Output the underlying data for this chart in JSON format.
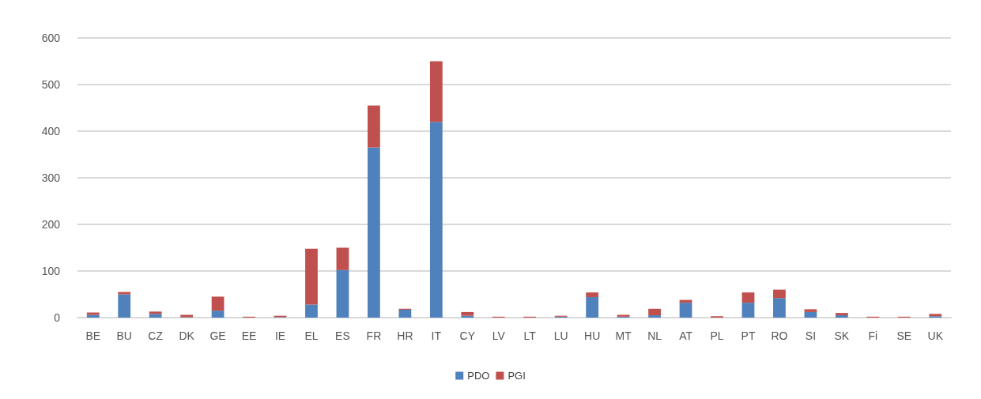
{
  "chart_data": {
    "type": "bar",
    "stacked": true,
    "categories": [
      "BE",
      "BU",
      "CZ",
      "DK",
      "GE",
      "EE",
      "IE",
      "EL",
      "ES",
      "FR",
      "HR",
      "IT",
      "CY",
      "LV",
      "LT",
      "LU",
      "HU",
      "MT",
      "NL",
      "AT",
      "PL",
      "PT",
      "RO",
      "SI",
      "SK",
      "Fi",
      "SE",
      "UK"
    ],
    "series": [
      {
        "name": "PDO",
        "color": "#4f81bd",
        "values": [
          6,
          50,
          8,
          1,
          15,
          0,
          1,
          28,
          102,
          365,
          17,
          420,
          4,
          0,
          0,
          2,
          44,
          2,
          5,
          32,
          0,
          32,
          42,
          12,
          5,
          0,
          0,
          3
        ]
      },
      {
        "name": "PGI",
        "color": "#c0504d",
        "values": [
          5,
          5,
          5,
          5,
          30,
          2,
          3,
          120,
          48,
          90,
          2,
          130,
          8,
          2,
          2,
          2,
          10,
          4,
          14,
          6,
          3,
          22,
          18,
          6,
          5,
          2,
          2,
          5
        ]
      }
    ],
    "ylim": [
      0,
      600
    ],
    "yticks": [
      0,
      100,
      200,
      300,
      400,
      500,
      600
    ],
    "grid": "y",
    "legend": "bottom"
  }
}
